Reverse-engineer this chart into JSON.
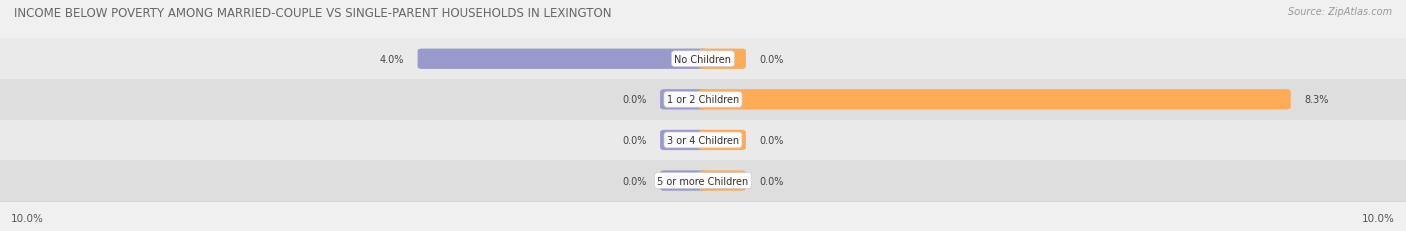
{
  "title": "INCOME BELOW POVERTY AMONG MARRIED-COUPLE VS SINGLE-PARENT HOUSEHOLDS IN LEXINGTON",
  "source": "Source: ZipAtlas.com",
  "categories": [
    "No Children",
    "1 or 2 Children",
    "3 or 4 Children",
    "5 or more Children"
  ],
  "married_values": [
    4.0,
    0.0,
    0.0,
    0.0
  ],
  "single_values": [
    0.0,
    8.3,
    0.0,
    0.0
  ],
  "married_color": "#9999cc",
  "single_color": "#ffaa55",
  "axis_max": 10.0,
  "row_colors": [
    "#eaeaea",
    "#dedede"
  ],
  "title_fontsize": 8.5,
  "source_fontsize": 7,
  "label_fontsize": 7,
  "category_fontsize": 7,
  "legend_fontsize": 7.5,
  "axis_label_fontsize": 7.5,
  "stub_size": 0.55
}
